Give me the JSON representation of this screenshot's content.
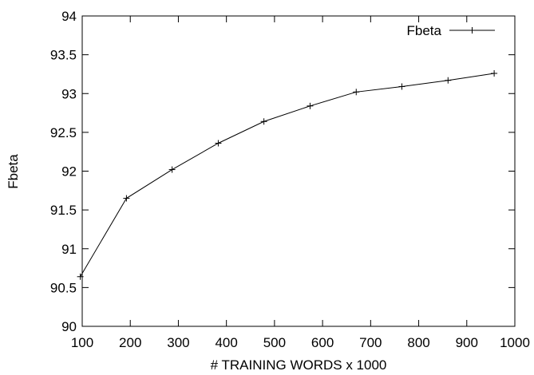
{
  "chart_data": {
    "type": "line",
    "title": "",
    "xlabel": "# TRAINING WORDS x 1000",
    "ylabel": "Fbeta",
    "xlim": [
      100,
      1000
    ],
    "ylim": [
      90,
      94
    ],
    "x_ticks": [
      100,
      200,
      300,
      400,
      500,
      600,
      700,
      800,
      900,
      1000
    ],
    "y_ticks": [
      90,
      90.5,
      91,
      91.5,
      92,
      92.5,
      93,
      93.5,
      94
    ],
    "grid": false,
    "legend_position": "top-right",
    "series": [
      {
        "name": "Fbeta",
        "color": "#000000",
        "marker": "plus",
        "x": [
          96,
          192,
          287,
          383,
          478,
          574,
          670,
          765,
          861,
          957
        ],
        "y": [
          90.64,
          91.65,
          92.02,
          92.36,
          92.64,
          92.84,
          93.02,
          93.09,
          93.17,
          93.26
        ]
      }
    ]
  }
}
